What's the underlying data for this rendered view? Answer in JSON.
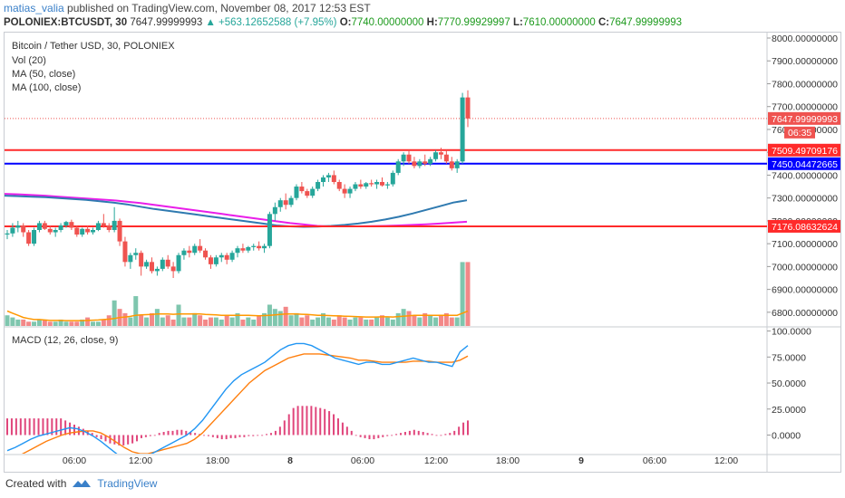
{
  "header": {
    "user": "matias_valia",
    "published_text": " published on TradingView.com, November 08, 2017 12:53 EST",
    "symbol": "POLONIEX:BTCUSDT, 30",
    "last": "7647.99999993",
    "change": "▲ +563.12652588 (+7.95%)",
    "o_label": "O:",
    "o_val": "7740.00000000",
    "h_label": "H:",
    "h_val": "7770.99929997",
    "l_label": "L:",
    "l_val": "7610.00000000",
    "c_label": "C:",
    "c_val": "7647.99999993"
  },
  "legend": {
    "title": "Bitcoin / Tether USD, 30, POLONIEX",
    "vol": "Vol (20)",
    "ma50": "MA (50, close)",
    "ma100": "MA (100, close)",
    "macd": "MACD (12, 26, close, 9)"
  },
  "footer": {
    "created": "Created with",
    "brand": "TradingView"
  },
  "chart_data": [
    {
      "type": "candlestick",
      "title": "Bitcoin / Tether USD, 30, POLONIEX",
      "ylim": [
        6740,
        8000
      ],
      "y_ticks": [
        "8000.00000000",
        "7900.00000000",
        "7800.00000000",
        "7700.00000000",
        "7600.00000000",
        "7500.00000000",
        "7400.00000000",
        "7300.00000000",
        "7200.00000000",
        "7100.00000000",
        "7000.00000000",
        "6900.00000000",
        "6800.00000000"
      ],
      "x_tick_labels": [
        "06:00",
        "12:00",
        "18:00",
        "8",
        "06:00",
        "12:00",
        "18:00",
        "9",
        "06:00",
        "12:00"
      ],
      "candles": [
        [
          7140,
          7160,
          7120,
          7145
        ],
        [
          7145,
          7190,
          7130,
          7170
        ],
        [
          7170,
          7200,
          7150,
          7180
        ],
        [
          7180,
          7190,
          7130,
          7150
        ],
        [
          7150,
          7160,
          7090,
          7100
        ],
        [
          7100,
          7170,
          7090,
          7160
        ],
        [
          7160,
          7200,
          7150,
          7190
        ],
        [
          7190,
          7200,
          7160,
          7165
        ],
        [
          7165,
          7180,
          7140,
          7150
        ],
        [
          7150,
          7170,
          7130,
          7160
        ],
        [
          7160,
          7190,
          7150,
          7180
        ],
        [
          7180,
          7200,
          7170,
          7195
        ],
        [
          7195,
          7205,
          7160,
          7170
        ],
        [
          7170,
          7180,
          7130,
          7140
        ],
        [
          7140,
          7170,
          7130,
          7165
        ],
        [
          7165,
          7180,
          7140,
          7150
        ],
        [
          7150,
          7170,
          7140,
          7160
        ],
        [
          7160,
          7200,
          7155,
          7190
        ],
        [
          7190,
          7230,
          7170,
          7180
        ],
        [
          7180,
          7190,
          7150,
          7160
        ],
        [
          7160,
          7260,
          7150,
          7200
        ],
        [
          7200,
          7210,
          7090,
          7110
        ],
        [
          7110,
          7130,
          7000,
          7020
        ],
        [
          7020,
          7060,
          6990,
          7050
        ],
        [
          7050,
          7080,
          7030,
          7060
        ],
        [
          7060,
          7070,
          6960,
          7000
        ],
        [
          7000,
          7030,
          6990,
          7020
        ],
        [
          7020,
          7040,
          6970,
          6980
        ],
        [
          6980,
          7000,
          6960,
          6990
        ],
        [
          6990,
          7040,
          6980,
          7030
        ],
        [
          7030,
          7050,
          6990,
          7000
        ],
        [
          7000,
          7020,
          6950,
          6980
        ],
        [
          6980,
          7060,
          6970,
          7050
        ],
        [
          7050,
          7080,
          7030,
          7070
        ],
        [
          7070,
          7090,
          7040,
          7060
        ],
        [
          7060,
          7100,
          7050,
          7090
        ],
        [
          7090,
          7120,
          7060,
          7070
        ],
        [
          7070,
          7080,
          7030,
          7040
        ],
        [
          7040,
          7050,
          6990,
          7010
        ],
        [
          7010,
          7050,
          7000,
          7040
        ],
        [
          7040,
          7060,
          7020,
          7050
        ],
        [
          7050,
          7060,
          7010,
          7030
        ],
        [
          7030,
          7070,
          7020,
          7060
        ],
        [
          7060,
          7090,
          7040,
          7080
        ],
        [
          7080,
          7100,
          7060,
          7070
        ],
        [
          7070,
          7090,
          7060,
          7085
        ],
        [
          7085,
          7100,
          7070,
          7090
        ],
        [
          7090,
          7110,
          7070,
          7080
        ],
        [
          7080,
          7100,
          7060,
          7090
        ],
        [
          7090,
          7240,
          7080,
          7230
        ],
        [
          7230,
          7280,
          7200,
          7260
        ],
        [
          7260,
          7300,
          7240,
          7290
        ],
        [
          7290,
          7320,
          7250,
          7270
        ],
        [
          7270,
          7310,
          7260,
          7300
        ],
        [
          7300,
          7360,
          7290,
          7350
        ],
        [
          7350,
          7370,
          7320,
          7330
        ],
        [
          7330,
          7340,
          7300,
          7310
        ],
        [
          7310,
          7350,
          7300,
          7340
        ],
        [
          7340,
          7380,
          7330,
          7370
        ],
        [
          7370,
          7400,
          7350,
          7390
        ],
        [
          7390,
          7410,
          7370,
          7400
        ],
        [
          7400,
          7420,
          7360,
          7370
        ],
        [
          7370,
          7380,
          7330,
          7340
        ],
        [
          7340,
          7360,
          7300,
          7320
        ],
        [
          7320,
          7350,
          7300,
          7340
        ],
        [
          7340,
          7370,
          7330,
          7360
        ],
        [
          7360,
          7380,
          7340,
          7350
        ],
        [
          7350,
          7370,
          7340,
          7365
        ],
        [
          7365,
          7380,
          7350,
          7360
        ],
        [
          7360,
          7380,
          7340,
          7370
        ],
        [
          7370,
          7390,
          7350,
          7355
        ],
        [
          7355,
          7370,
          7340,
          7360
        ],
        [
          7360,
          7420,
          7350,
          7410
        ],
        [
          7410,
          7470,
          7400,
          7460
        ],
        [
          7460,
          7500,
          7440,
          7490
        ],
        [
          7490,
          7510,
          7450,
          7460
        ],
        [
          7460,
          7480,
          7430,
          7440
        ],
        [
          7440,
          7470,
          7430,
          7460
        ],
        [
          7460,
          7490,
          7440,
          7450
        ],
        [
          7450,
          7480,
          7440,
          7470
        ],
        [
          7470,
          7510,
          7460,
          7500
        ],
        [
          7500,
          7520,
          7470,
          7490
        ],
        [
          7490,
          7510,
          7450,
          7460
        ],
        [
          7460,
          7480,
          7420,
          7430
        ],
        [
          7430,
          7470,
          7410,
          7460
        ],
        [
          7460,
          7760,
          7450,
          7740
        ],
        [
          7740,
          7771,
          7610,
          7648
        ]
      ],
      "ma50": [
        7310,
        7308,
        7306,
        7304,
        7300,
        7296,
        7292,
        7286,
        7280,
        7272,
        7262,
        7252,
        7244,
        7236,
        7228,
        7220,
        7212,
        7204,
        7196,
        7188,
        7180,
        7176,
        7174,
        7175,
        7178,
        7182,
        7188,
        7196,
        7206,
        7218,
        7232,
        7248,
        7264,
        7280,
        7290
      ],
      "ma100": [
        7318,
        7316,
        7313,
        7310,
        7306,
        7302,
        7298,
        7294,
        7290,
        7284,
        7278,
        7270,
        7262,
        7254,
        7246,
        7238,
        7230,
        7222,
        7214,
        7206,
        7198,
        7190,
        7184,
        7178,
        7176,
        7176,
        7176,
        7177,
        7178,
        7180,
        7182,
        7185,
        7188,
        7192,
        7196
      ],
      "horizontal_lines": [
        {
          "price": 7509.49709176,
          "label": "7509.49709176",
          "color": "#ff2a2a"
        },
        {
          "price": 7450.04472665,
          "label": "7450.04472665",
          "color": "#0000ff"
        },
        {
          "price": 7176.08632624,
          "label": "7176.08632624",
          "color": "#ff2a2a"
        }
      ],
      "last_price": {
        "price": 7647.99999993,
        "label": "7647.99999993",
        "countdown": "06:35",
        "color": "#ef5350"
      },
      "volume": [
        5,
        4,
        3,
        3,
        2,
        2,
        3,
        3,
        2,
        2,
        3,
        2,
        2,
        2,
        3,
        4,
        2,
        2,
        3,
        5,
        12,
        8,
        6,
        4,
        14,
        5,
        4,
        6,
        8,
        4,
        5,
        3,
        10,
        4,
        4,
        6,
        5,
        3,
        4,
        4,
        3,
        5,
        4,
        6,
        3,
        4,
        3,
        5,
        6,
        10,
        8,
        7,
        9,
        5,
        6,
        4,
        5,
        3,
        4,
        6,
        4,
        3,
        5,
        4,
        3,
        4,
        4,
        3,
        3,
        4,
        5,
        4,
        3,
        6,
        8,
        7,
        5,
        4,
        6,
        5,
        4,
        5,
        6,
        4,
        4,
        30,
        30
      ],
      "volume_ma": [
        7,
        6,
        5,
        4,
        3.5,
        3,
        3,
        2.8,
        2.6,
        2.6,
        2.6,
        2.5,
        2.5,
        2.5,
        2.5,
        2.6,
        2.7,
        2.8,
        3,
        3.2,
        3.5,
        4,
        4.2,
        4.5,
        5,
        5.2,
        5.3,
        5.4,
        5.6,
        5.6,
        5.6,
        5.5,
        5.6,
        5.6,
        5.6,
        5.7,
        5.6,
        5.4,
        5.3,
        5.2,
        5,
        5,
        5,
        5,
        5,
        5,
        4.9,
        4.8,
        4.9,
        5,
        5.2,
        5.4,
        5.6,
        5.6,
        5.6,
        5.5,
        5.4,
        5.2,
        5,
        5,
        4.9,
        4.8,
        4.7,
        4.6,
        4.5,
        4.4,
        4.3,
        4.2,
        4.2,
        4.2,
        4.3,
        4.3,
        4.2,
        4.4,
        4.6,
        4.8,
        5,
        5,
        5,
        5,
        5,
        5,
        5,
        5,
        5,
        6,
        7
      ]
    },
    {
      "type": "macd",
      "title": "MACD (12, 26, close, 9)",
      "ylim": [
        -17,
        104
      ],
      "y_ticks": [
        "100.0000",
        "75.0000",
        "50.0000",
        "25.0000",
        "0.0000"
      ],
      "macd": [
        -15,
        -12,
        -8,
        -4,
        -1,
        1,
        3,
        5,
        7,
        6,
        3,
        -1,
        -6,
        -12,
        -18,
        -24,
        -26,
        -24,
        -20,
        -16,
        -12,
        -8,
        -4,
        0,
        6,
        14,
        24,
        34,
        44,
        52,
        58,
        62,
        66,
        70,
        76,
        82,
        86,
        88,
        88,
        86,
        82,
        78,
        74,
        72,
        70,
        68,
        70,
        70,
        68,
        68,
        70,
        72,
        74,
        72,
        70,
        70,
        68,
        66,
        80,
        86
      ],
      "signal": [
        -25,
        -22,
        -18,
        -14,
        -10,
        -6,
        -3,
        0,
        2,
        3,
        4,
        4,
        2,
        -2,
        -7,
        -12,
        -16,
        -18,
        -18,
        -16,
        -14,
        -12,
        -10,
        -8,
        -4,
        2,
        10,
        18,
        26,
        34,
        42,
        50,
        56,
        62,
        66,
        70,
        74,
        76,
        78,
        78,
        78,
        77,
        76,
        75,
        74,
        72,
        72,
        71,
        70,
        70,
        70,
        70,
        71,
        71,
        71,
        70,
        70,
        70,
        72,
        76
      ],
      "histogram": [
        16,
        16,
        16,
        16,
        16,
        16,
        16,
        16,
        16,
        16,
        16,
        16,
        16,
        14,
        12,
        10,
        8,
        6,
        4,
        2,
        -2,
        -4,
        -6,
        -8,
        -9,
        -10,
        -10,
        -9,
        -8,
        -6,
        -3,
        -2,
        -1,
        0,
        2,
        3,
        4,
        4,
        5,
        5,
        4,
        3,
        2,
        1,
        0,
        -1,
        -2,
        -3,
        -4,
        -4,
        -3,
        -3,
        -2,
        -2,
        -1,
        -1,
        0,
        0,
        1,
        2,
        4,
        8,
        14,
        20,
        26,
        28,
        28,
        28,
        28,
        27,
        26,
        25,
        23,
        20,
        16,
        12,
        8,
        4,
        0,
        -2,
        -3,
        -4,
        -4,
        -3,
        -2,
        -1,
        0,
        1,
        2,
        3,
        4,
        5,
        4,
        3,
        2,
        1,
        0,
        0,
        1,
        2,
        4,
        8,
        12,
        14
      ]
    }
  ]
}
